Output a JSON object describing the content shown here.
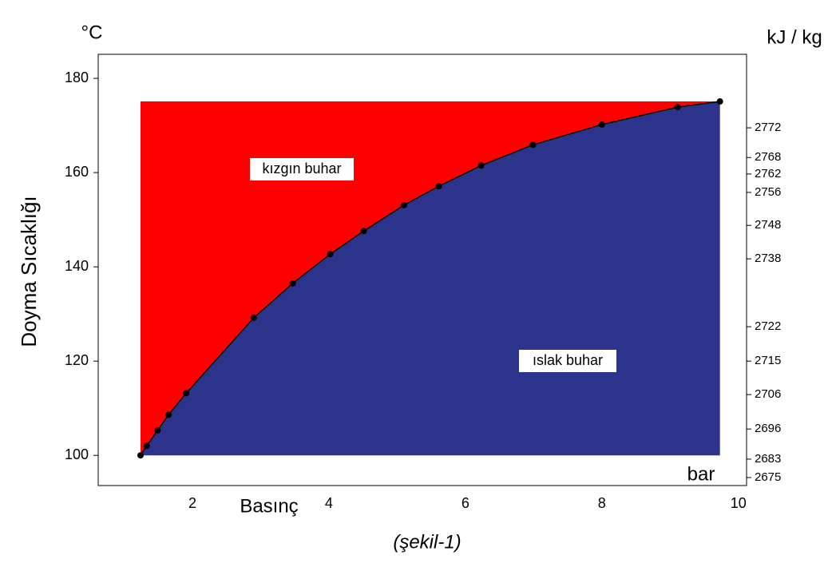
{
  "chart_data": {
    "type": "area",
    "y_unit": "°C",
    "y2_unit": "kJ / kg",
    "ylabel": "Doyma Sıcaklığı",
    "xlabel": "Basınç",
    "x_unit": "bar",
    "caption": "(şekil-1)",
    "annotations": [
      "kızgın buhar",
      "ıslak buhar"
    ],
    "x": [
      1.24,
      1.33,
      1.49,
      1.65,
      1.91,
      2.9,
      3.47,
      4.02,
      4.51,
      5.1,
      5.61,
      6.23,
      6.99,
      8.0,
      9.11,
      9.73
    ],
    "series": [
      {
        "color": "#000000",
        "values": [
          100,
          102.0,
          105.3,
          108.6,
          113.2,
          129.2,
          136.5,
          142.7,
          147.6,
          153.1,
          157.1,
          161.5,
          165.9,
          170.2,
          173.9,
          175.1
        ]
      }
    ],
    "above_color": "#ff0000",
    "below_color": "#2b338b",
    "xlim": [
      0.62,
      10.12
    ],
    "xticks": [
      2,
      4,
      6,
      8,
      10
    ],
    "ylim": [
      93.6,
      185.1
    ],
    "yticks": [
      100,
      120,
      140,
      160,
      180
    ],
    "y2ticks": [
      2772,
      2768,
      2762,
      2756,
      2748,
      2738,
      2722,
      2715,
      2706,
      2696,
      2683,
      2675
    ],
    "y2tick_temperatures": [
      169.5,
      163.2,
      159.7,
      155.8,
      148.8,
      141.7,
      127.3,
      120.0,
      112.9,
      105.6,
      99.2,
      95.3
    ]
  }
}
